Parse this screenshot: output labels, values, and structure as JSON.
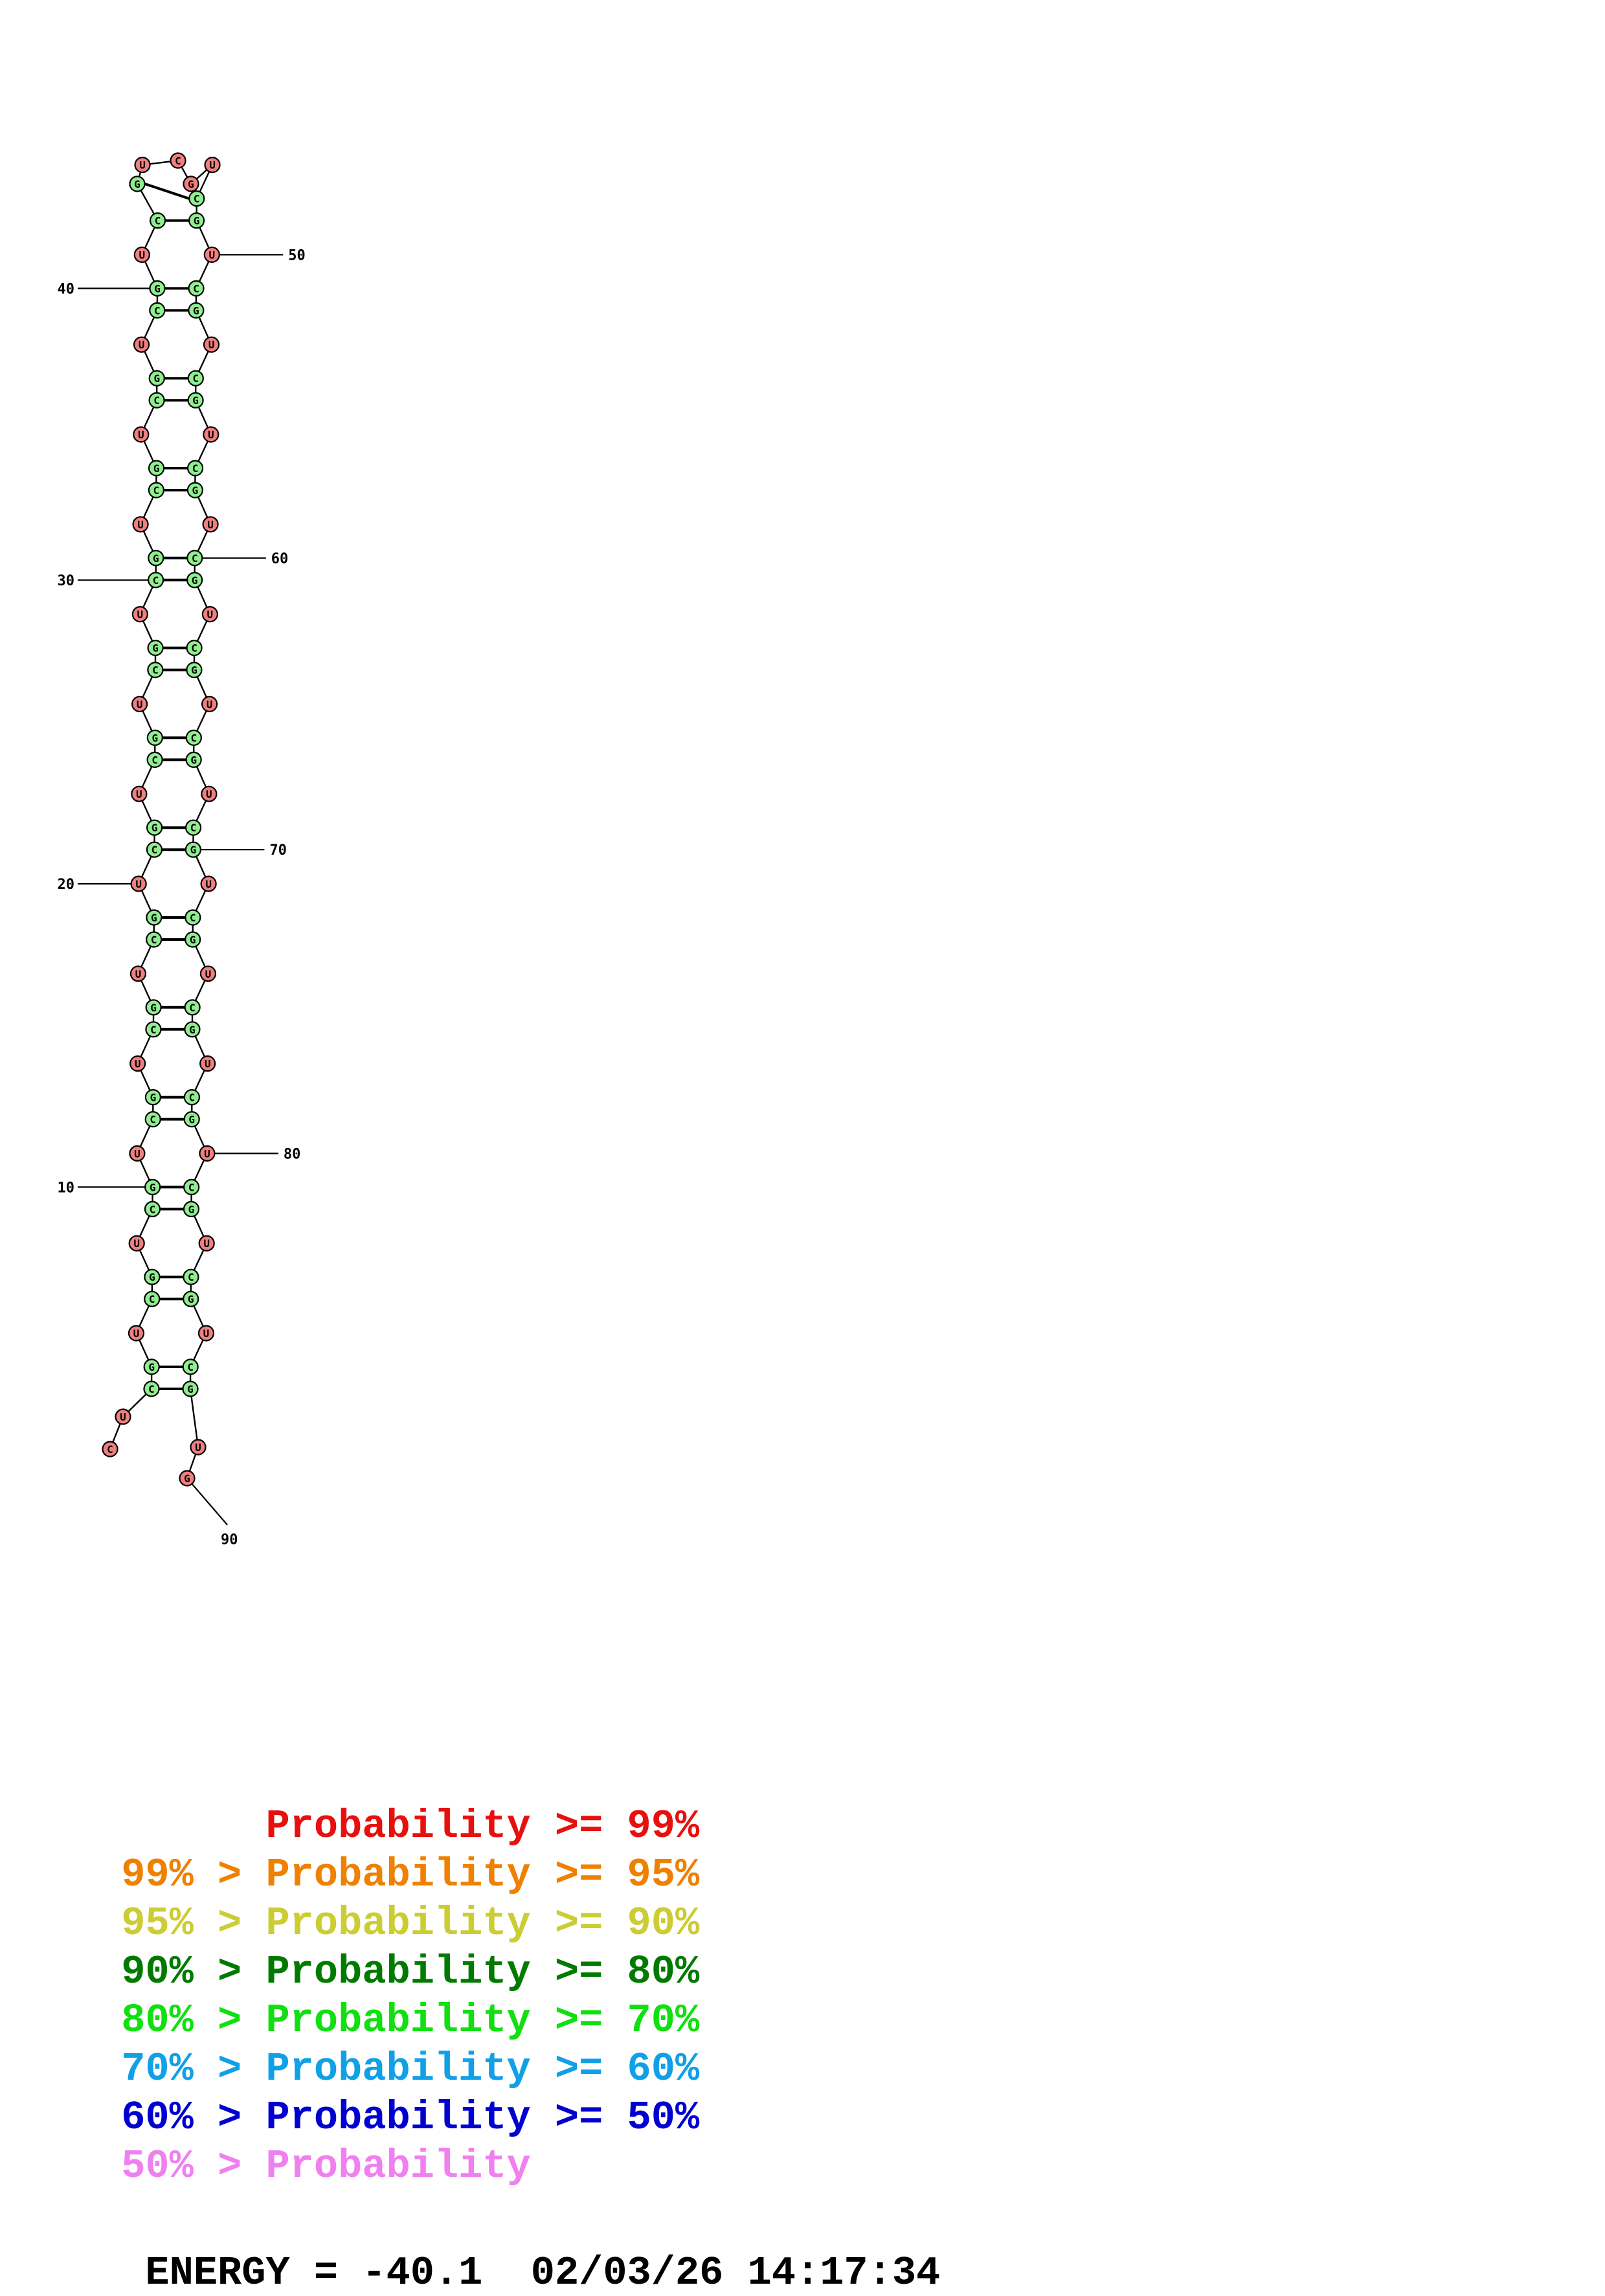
{
  "structure": {
    "sequence": "CUCGUCGUCGUCGUCGUCGUCGUCGUCGUCGUCGUCGUCGUCGUCGUCGUCGUCGUCGUCGUCGUCGUCGUCGUCGUCGUCGUCGUCGUG",
    "position_labels": [
      "10",
      "20",
      "30",
      "40",
      "50",
      "60",
      "70",
      "80",
      "90"
    ],
    "colors": {
      "paired": "#90ee90",
      "unpaired": "#f08080",
      "outline": "#000000"
    }
  },
  "legend": {
    "lines": [
      {
        "prefix": "       ",
        "label": "Probability >= 99%",
        "color": "#e8100f"
      },
      {
        "prefix": "99% > ",
        "label": "Probability >= 95%",
        "color": "#f08000"
      },
      {
        "prefix": "95% > ",
        "label": "Probability >= 90%",
        "color": "#cccc33"
      },
      {
        "prefix": "90% > ",
        "label": "Probability >= 80%",
        "color": "#007a00"
      },
      {
        "prefix": "80% > ",
        "label": "Probability >= 70%",
        "color": "#10e010"
      },
      {
        "prefix": "70% > ",
        "label": "Probability >= 60%",
        "color": "#10a0e8"
      },
      {
        "prefix": "60% > ",
        "label": "Probability >= 50%",
        "color": "#0000d0"
      },
      {
        "prefix": "50% > ",
        "label": "Probability",
        "color": "#f080f0"
      }
    ]
  },
  "footer": {
    "energy": "ENERGY = -40.1",
    "timestamp": "02/03/26 14:17:34"
  }
}
